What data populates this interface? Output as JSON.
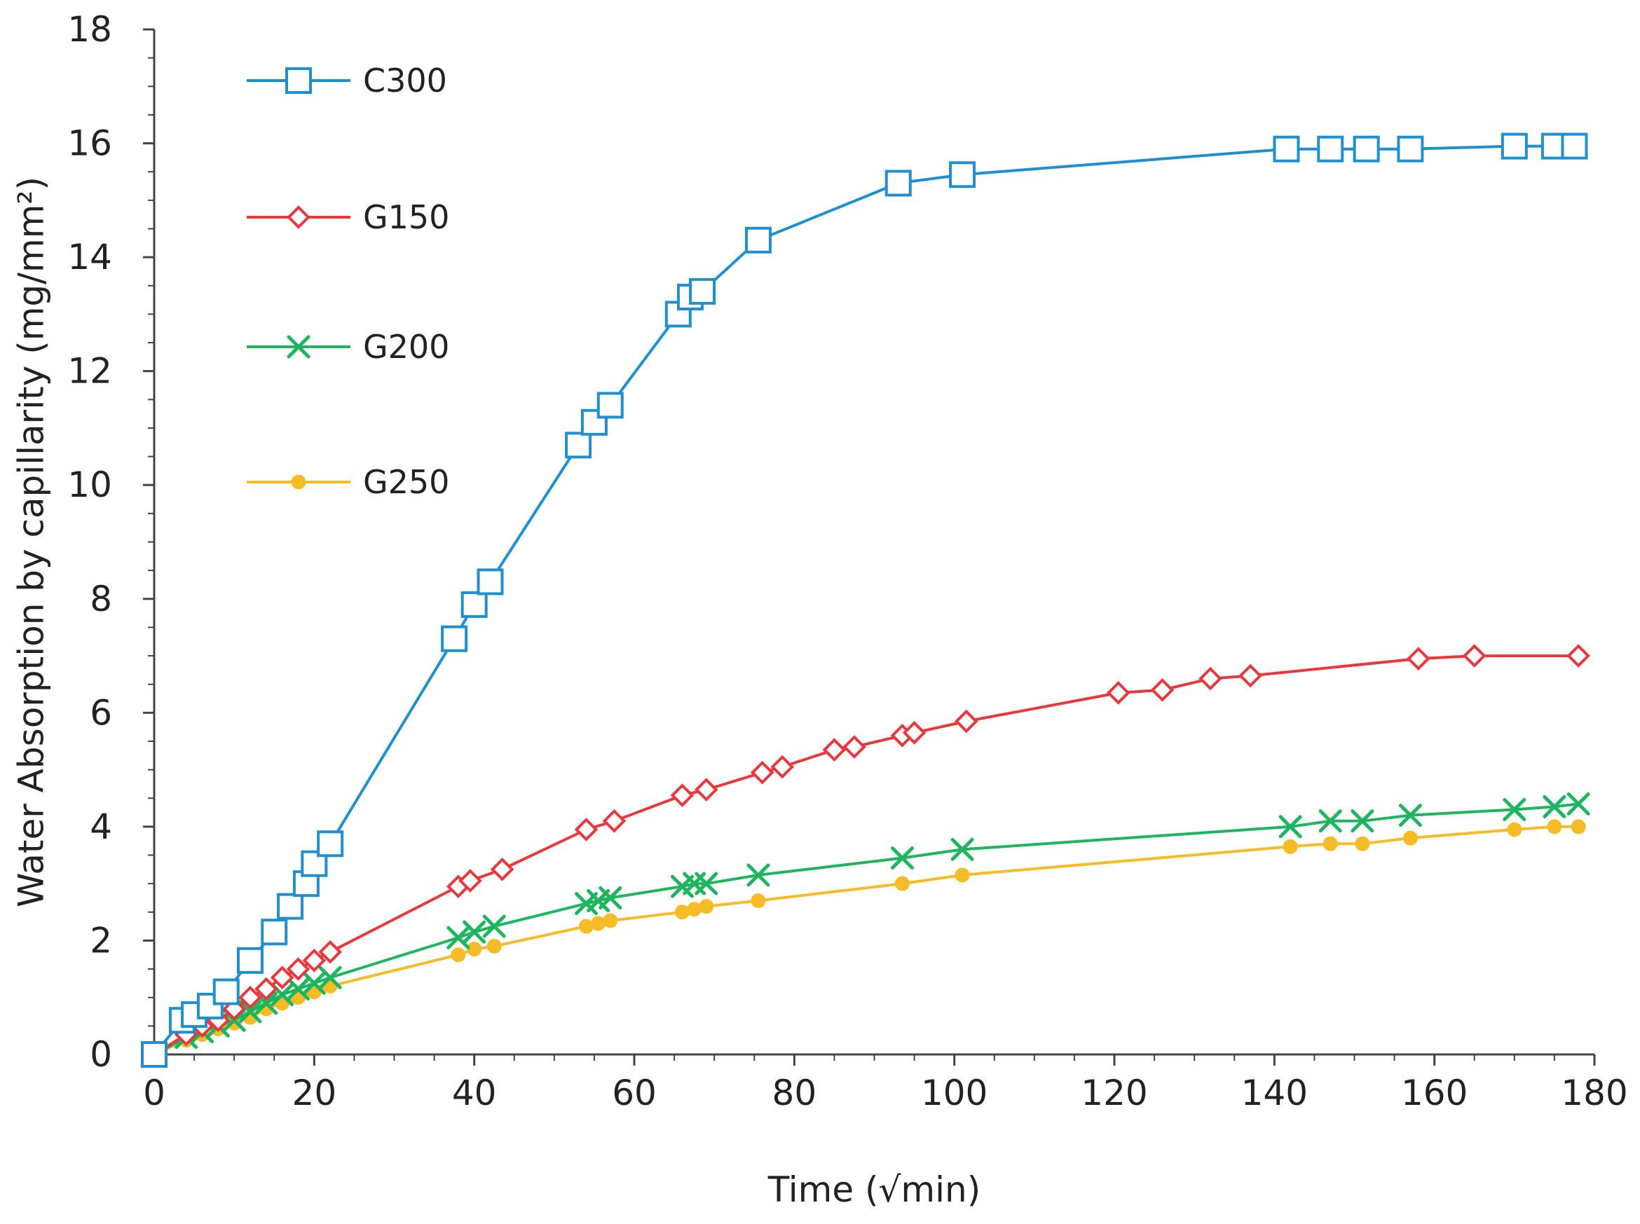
{
  "chart_data": {
    "type": "line",
    "title": "",
    "xlabel": "Time (√min)",
    "ylabel": "Water Absorption by capillarity (mg/mm²)",
    "xlim": [
      0,
      180
    ],
    "ylim": [
      0,
      18
    ],
    "xticks": [
      0,
      20,
      40,
      60,
      80,
      100,
      120,
      140,
      160,
      180
    ],
    "yticks": [
      0,
      2,
      4,
      6,
      8,
      10,
      12,
      14,
      16,
      18
    ],
    "grid": false,
    "legend_position": "top-left",
    "series": [
      {
        "name": "C300",
        "color": "#1f8fd1",
        "marker": "square",
        "x": [
          0,
          3.5,
          5,
          7,
          9,
          12,
          15,
          17,
          19,
          20,
          22,
          37.5,
          40,
          42,
          53,
          55,
          57,
          65.5,
          67,
          68.5,
          75.5,
          93,
          101,
          141.5,
          147,
          151.5,
          157,
          170,
          175,
          177.5
        ],
        "y": [
          0,
          0.6,
          0.7,
          0.85,
          1.1,
          1.65,
          2.15,
          2.6,
          3.0,
          3.35,
          3.7,
          7.3,
          7.9,
          8.3,
          10.7,
          11.1,
          11.4,
          13.0,
          13.3,
          13.4,
          14.3,
          15.3,
          15.45,
          15.9,
          15.9,
          15.9,
          15.9,
          15.95,
          15.95,
          15.95
        ]
      },
      {
        "name": "G150",
        "color": "#e8383d",
        "marker": "diamond",
        "x": [
          0,
          4,
          6,
          8,
          10,
          12,
          14,
          16,
          18,
          20,
          22,
          38,
          39.5,
          43.5,
          54,
          57.5,
          66,
          69,
          76,
          78.5,
          85,
          87.5,
          93.5,
          95,
          101.5,
          120.5,
          126,
          132,
          137,
          158,
          165,
          178
        ],
        "y": [
          0,
          0.35,
          0.5,
          0.6,
          0.8,
          1.0,
          1.15,
          1.35,
          1.5,
          1.65,
          1.8,
          2.95,
          3.05,
          3.25,
          3.95,
          4.1,
          4.55,
          4.65,
          4.95,
          5.05,
          5.35,
          5.4,
          5.6,
          5.65,
          5.85,
          6.35,
          6.4,
          6.6,
          6.65,
          6.95,
          7.0,
          7.0
        ]
      },
      {
        "name": "G200",
        "color": "#1db55e",
        "marker": "x",
        "x": [
          0,
          4,
          6,
          8,
          10,
          12,
          14,
          16,
          18,
          20,
          22,
          38,
          40,
          42.5,
          54,
          55.5,
          57,
          66,
          67.5,
          69,
          75.5,
          93.5,
          101,
          142,
          147,
          151,
          157,
          170,
          175,
          178
        ],
        "y": [
          0,
          0.3,
          0.4,
          0.5,
          0.6,
          0.75,
          0.9,
          1.05,
          1.15,
          1.25,
          1.35,
          2.05,
          2.15,
          2.25,
          2.65,
          2.7,
          2.75,
          2.95,
          3.0,
          3.0,
          3.15,
          3.45,
          3.6,
          4.0,
          4.1,
          4.1,
          4.2,
          4.3,
          4.35,
          4.4
        ]
      },
      {
        "name": "G250",
        "color": "#f7bc25",
        "marker": "dot",
        "x": [
          0,
          4,
          6,
          8,
          10,
          12,
          14,
          16,
          18,
          20,
          22,
          38,
          40,
          42.5,
          54,
          55.5,
          57,
          66,
          67.5,
          69,
          75.5,
          93.5,
          101,
          142,
          147,
          151,
          157,
          170,
          175,
          178
        ],
        "y": [
          0,
          0.25,
          0.35,
          0.45,
          0.55,
          0.65,
          0.8,
          0.9,
          1.0,
          1.1,
          1.2,
          1.75,
          1.85,
          1.9,
          2.25,
          2.3,
          2.35,
          2.5,
          2.55,
          2.6,
          2.7,
          3.0,
          3.15,
          3.65,
          3.7,
          3.7,
          3.8,
          3.95,
          4.0,
          4.0
        ]
      }
    ]
  }
}
